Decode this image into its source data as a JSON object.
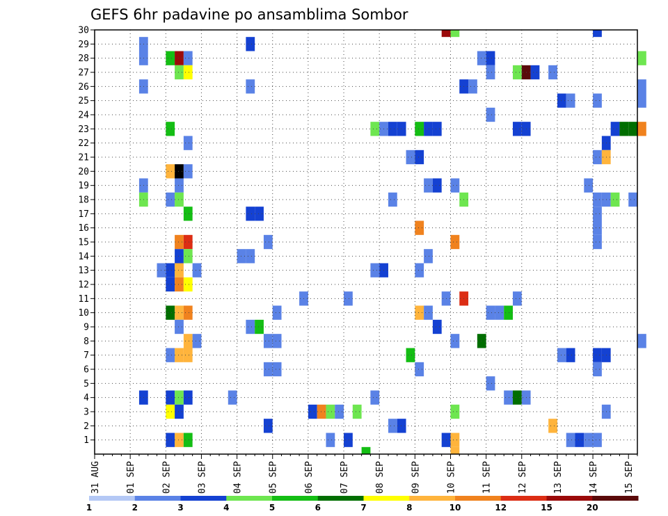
{
  "chart_data": {
    "type": "heatmap",
    "title": "GEFS 6hr padavine po ansamblima Sombor",
    "xlabel": "",
    "ylabel": "",
    "x_tick_labels": [
      "31 AUG",
      "01 SEP",
      "02 SEP",
      "03 SEP",
      "04 SEP",
      "05 SEP",
      "06 SEP",
      "07 SEP",
      "08 SEP",
      "09 SEP",
      "10 SEP",
      "11 SEP",
      "12 SEP",
      "13 SEP",
      "14 SEP",
      "15 SEP"
    ],
    "y_tick_labels": [
      "1",
      "2",
      "3",
      "4",
      "5",
      "6",
      "7",
      "8",
      "9",
      "10",
      "11",
      "12",
      "13",
      "14",
      "15",
      "16",
      "17",
      "18",
      "19",
      "20",
      "21",
      "22",
      "23",
      "24",
      "25",
      "26",
      "27",
      "28",
      "29",
      "30"
    ],
    "x_range_steps": [
      0,
      61
    ],
    "y_range": [
      0,
      30
    ],
    "grid": true,
    "colorbar": {
      "labels": [
        "1",
        "2",
        "3",
        "4",
        "5",
        "6",
        "7",
        "8",
        "10",
        "12",
        "15",
        "20"
      ],
      "colors": [
        "#b4c8f5",
        "#5a82e6",
        "#1441d2",
        "#6ee650",
        "#14be14",
        "#006e00",
        "#ffff00",
        "#ffb43c",
        "#f0821e",
        "#dc2d14",
        "#9b0a0a",
        "#5a0a0a"
      ]
    },
    "cells": [
      {
        "t": 5,
        "m": 29,
        "v": 1
      },
      {
        "t": 5,
        "m": 28,
        "v": 1
      },
      {
        "t": 5,
        "m": 26,
        "v": 1
      },
      {
        "t": 5,
        "m": 19,
        "v": 1
      },
      {
        "t": 5,
        "m": 18,
        "v": 3
      },
      {
        "t": 5,
        "m": 4,
        "v": 2
      },
      {
        "t": 8,
        "m": 28,
        "v": 4
      },
      {
        "t": 8,
        "m": 23,
        "v": 4
      },
      {
        "t": 8,
        "m": 20,
        "v": 7
      },
      {
        "t": 8,
        "m": 18,
        "v": 1
      },
      {
        "t": 8,
        "m": 13,
        "v": 2
      },
      {
        "t": 8,
        "m": 12,
        "v": 2
      },
      {
        "t": 8,
        "m": 10,
        "v": 5
      },
      {
        "t": 8,
        "m": 7,
        "v": 1
      },
      {
        "t": 8,
        "m": 4,
        "v": 2
      },
      {
        "t": 8,
        "m": 3,
        "v": 6
      },
      {
        "t": 8,
        "m": 1,
        "v": 2
      },
      {
        "t": 7,
        "m": 13,
        "v": 1
      },
      {
        "t": 9,
        "m": 28,
        "v": 10
      },
      {
        "t": 9,
        "m": 27,
        "v": 3
      },
      {
        "t": 9,
        "m": 20,
        "v": 12
      },
      {
        "t": 9,
        "m": 19,
        "v": 1
      },
      {
        "t": 9,
        "m": 18,
        "v": 3
      },
      {
        "t": 9,
        "m": 15,
        "v": 8
      },
      {
        "t": 9,
        "m": 14,
        "v": 2
      },
      {
        "t": 9,
        "m": 13,
        "v": 7
      },
      {
        "t": 9,
        "m": 12,
        "v": 8
      },
      {
        "t": 9,
        "m": 10,
        "v": 7
      },
      {
        "t": 9,
        "m": 9,
        "v": 1
      },
      {
        "t": 9,
        "m": 7,
        "v": 7
      },
      {
        "t": 9,
        "m": 4,
        "v": 3
      },
      {
        "t": 9,
        "m": 3,
        "v": 2
      },
      {
        "t": 9,
        "m": 1,
        "v": 7
      },
      {
        "t": 10,
        "m": 28,
        "v": 1
      },
      {
        "t": 10,
        "m": 27,
        "v": 6
      },
      {
        "t": 10,
        "m": 22,
        "v": 1
      },
      {
        "t": 10,
        "m": 20,
        "v": 1
      },
      {
        "t": 10,
        "m": 17,
        "v": 4
      },
      {
        "t": 10,
        "m": 15,
        "v": 9
      },
      {
        "t": 10,
        "m": 14,
        "v": 3
      },
      {
        "t": 10,
        "m": 12,
        "v": 6
      },
      {
        "t": 10,
        "m": 10,
        "v": 8
      },
      {
        "t": 10,
        "m": 8,
        "v": 7
      },
      {
        "t": 10,
        "m": 7,
        "v": 7
      },
      {
        "t": 10,
        "m": 4,
        "v": 2
      },
      {
        "t": 10,
        "m": 1,
        "v": 4
      },
      {
        "t": 11,
        "m": 13,
        "v": 1
      },
      {
        "t": 11,
        "m": 8,
        "v": 1
      },
      {
        "t": 15,
        "m": 4,
        "v": 1
      },
      {
        "t": 16,
        "m": 14,
        "v": 1
      },
      {
        "t": 17,
        "m": 29,
        "v": 2
      },
      {
        "t": 17,
        "m": 26,
        "v": 1
      },
      {
        "t": 17,
        "m": 17,
        "v": 2
      },
      {
        "t": 17,
        "m": 14,
        "v": 1
      },
      {
        "t": 17,
        "m": 9,
        "v": 1
      },
      {
        "t": 18,
        "m": 17,
        "v": 2
      },
      {
        "t": 18,
        "m": 9,
        "v": 4
      },
      {
        "t": 19,
        "m": 15,
        "v": 1
      },
      {
        "t": 19,
        "m": 8,
        "v": 1
      },
      {
        "t": 19,
        "m": 6,
        "v": 1
      },
      {
        "t": 19,
        "m": 2,
        "v": 2
      },
      {
        "t": 20,
        "m": 10,
        "v": 1
      },
      {
        "t": 20,
        "m": 8,
        "v": 1
      },
      {
        "t": 20,
        "m": 6,
        "v": 1
      },
      {
        "t": 23,
        "m": 11,
        "v": 1
      },
      {
        "t": 24,
        "m": 3,
        "v": 2
      },
      {
        "t": 25,
        "m": 3,
        "v": 8
      },
      {
        "t": 26,
        "m": 3,
        "v": 3
      },
      {
        "t": 26,
        "m": 1,
        "v": 1
      },
      {
        "t": 27,
        "m": 3,
        "v": 1
      },
      {
        "t": 28,
        "m": 11,
        "v": 1
      },
      {
        "t": 28,
        "m": 1,
        "v": 2
      },
      {
        "t": 29,
        "m": 3,
        "v": 3
      },
      {
        "t": 30,
        "m": 0,
        "v": 4
      },
      {
        "t": 31,
        "m": 23,
        "v": 3
      },
      {
        "t": 31,
        "m": 13,
        "v": 1
      },
      {
        "t": 31,
        "m": 4,
        "v": 1
      },
      {
        "t": 32,
        "m": 23,
        "v": 1
      },
      {
        "t": 32,
        "m": 13,
        "v": 2
      },
      {
        "t": 33,
        "m": 23,
        "v": 2
      },
      {
        "t": 33,
        "m": 18,
        "v": 1
      },
      {
        "t": 33,
        "m": 2,
        "v": 1
      },
      {
        "t": 34,
        "m": 23,
        "v": 2
      },
      {
        "t": 34,
        "m": 2,
        "v": 2
      },
      {
        "t": 35,
        "m": 21,
        "v": 1
      },
      {
        "t": 35,
        "m": 7,
        "v": 4
      },
      {
        "t": 36,
        "m": 23,
        "v": 4
      },
      {
        "t": 36,
        "m": 21,
        "v": 2
      },
      {
        "t": 36,
        "m": 16,
        "v": 8
      },
      {
        "t": 36,
        "m": 13,
        "v": 1
      },
      {
        "t": 36,
        "m": 10,
        "v": 7
      },
      {
        "t": 36,
        "m": 6,
        "v": 1
      },
      {
        "t": 37,
        "m": 23,
        "v": 2
      },
      {
        "t": 37,
        "m": 19,
        "v": 1
      },
      {
        "t": 37,
        "m": 14,
        "v": 1
      },
      {
        "t": 37,
        "m": 10,
        "v": 1
      },
      {
        "t": 38,
        "m": 23,
        "v": 2
      },
      {
        "t": 38,
        "m": 19,
        "v": 2
      },
      {
        "t": 38,
        "m": 9,
        "v": 2
      },
      {
        "t": 39,
        "m": 30,
        "v": 10
      },
      {
        "t": 39,
        "m": 11,
        "v": 1
      },
      {
        "t": 39,
        "m": 1,
        "v": 2
      },
      {
        "t": 40,
        "m": 30,
        "v": 3
      },
      {
        "t": 40,
        "m": 19,
        "v": 1
      },
      {
        "t": 40,
        "m": 15,
        "v": 8
      },
      {
        "t": 40,
        "m": 8,
        "v": 1
      },
      {
        "t": 40,
        "m": 3,
        "v": 3
      },
      {
        "t": 40,
        "m": 1,
        "v": 7
      },
      {
        "t": 40,
        "m": 0,
        "v": 7
      },
      {
        "t": 41,
        "m": 26,
        "v": 2
      },
      {
        "t": 41,
        "m": 18,
        "v": 3
      },
      {
        "t": 41,
        "m": 11,
        "v": 9
      },
      {
        "t": 42,
        "m": 26,
        "v": 1
      },
      {
        "t": 43,
        "m": 28,
        "v": 1
      },
      {
        "t": 43,
        "m": 8,
        "v": 5
      },
      {
        "t": 44,
        "m": 28,
        "v": 2
      },
      {
        "t": 44,
        "m": 27,
        "v": 1
      },
      {
        "t": 44,
        "m": 24,
        "v": 1
      },
      {
        "t": 44,
        "m": 10,
        "v": 1
      },
      {
        "t": 44,
        "m": 5,
        "v": 1
      },
      {
        "t": 45,
        "m": 10,
        "v": 1
      },
      {
        "t": 46,
        "m": 10,
        "v": 4
      },
      {
        "t": 46,
        "m": 4,
        "v": 1
      },
      {
        "t": 47,
        "m": 27,
        "v": 3
      },
      {
        "t": 47,
        "m": 23,
        "v": 2
      },
      {
        "t": 47,
        "m": 11,
        "v": 1
      },
      {
        "t": 47,
        "m": 4,
        "v": 5
      },
      {
        "t": 48,
        "m": 27,
        "v": 11
      },
      {
        "t": 48,
        "m": 23,
        "v": 2
      },
      {
        "t": 48,
        "m": 4,
        "v": 1
      },
      {
        "t": 49,
        "m": 27,
        "v": 2
      },
      {
        "t": 51,
        "m": 27,
        "v": 1
      },
      {
        "t": 51,
        "m": 2,
        "v": 7
      },
      {
        "t": 52,
        "m": 25,
        "v": 2
      },
      {
        "t": 52,
        "m": 7,
        "v": 1
      },
      {
        "t": 53,
        "m": 25,
        "v": 1
      },
      {
        "t": 53,
        "m": 7,
        "v": 2
      },
      {
        "t": 53,
        "m": 1,
        "v": 1
      },
      {
        "t": 54,
        "m": 1,
        "v": 2
      },
      {
        "t": 55,
        "m": 19,
        "v": 1
      },
      {
        "t": 55,
        "m": 1,
        "v": 1
      },
      {
        "t": 56,
        "m": 30,
        "v": 2
      },
      {
        "t": 56,
        "m": 25,
        "v": 1
      },
      {
        "t": 56,
        "m": 21,
        "v": 1
      },
      {
        "t": 56,
        "m": 18,
        "v": 1
      },
      {
        "t": 56,
        "m": 17,
        "v": 1
      },
      {
        "t": 56,
        "m": 16,
        "v": 1
      },
      {
        "t": 56,
        "m": 15,
        "v": 1
      },
      {
        "t": 56,
        "m": 7,
        "v": 2
      },
      {
        "t": 56,
        "m": 6,
        "v": 1
      },
      {
        "t": 56,
        "m": 1,
        "v": 1
      },
      {
        "t": 57,
        "m": 22,
        "v": 2
      },
      {
        "t": 57,
        "m": 21,
        "v": 7
      },
      {
        "t": 57,
        "m": 18,
        "v": 1
      },
      {
        "t": 57,
        "m": 7,
        "v": 2
      },
      {
        "t": 57,
        "m": 3,
        "v": 1
      },
      {
        "t": 58,
        "m": 23,
        "v": 2
      },
      {
        "t": 58,
        "m": 18,
        "v": 3
      },
      {
        "t": 59,
        "m": 23,
        "v": 5
      },
      {
        "t": 60,
        "m": 23,
        "v": 5
      },
      {
        "t": 60,
        "m": 18,
        "v": 1
      },
      {
        "t": 61,
        "m": 28,
        "v": 3
      },
      {
        "t": 61,
        "m": 26,
        "v": 1
      },
      {
        "t": 61,
        "m": 25,
        "v": 1
      },
      {
        "t": 61,
        "m": 23,
        "v": 8
      },
      {
        "t": 61,
        "m": 8,
        "v": 1
      }
    ]
  }
}
